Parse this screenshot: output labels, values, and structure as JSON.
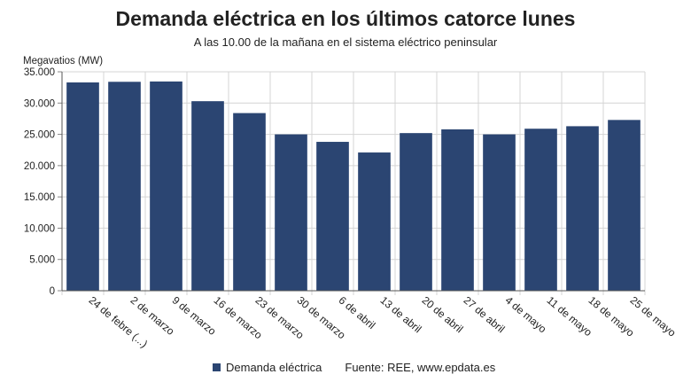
{
  "chart_data": {
    "type": "bar",
    "title": "Demanda eléctrica en los últimos catorce lunes",
    "subtitle": "A las 10.00 de la mañana en el sistema eléctrico peninsular",
    "ylabel": "Megavatios (MW)",
    "xlabel": "",
    "ylim": [
      0,
      35000
    ],
    "yticks": [
      "0",
      "5.000",
      "10.000",
      "15.000",
      "20.000",
      "25.000",
      "30.000",
      "35.000"
    ],
    "ytick_values": [
      0,
      5000,
      10000,
      15000,
      20000,
      25000,
      30000,
      35000
    ],
    "categories": [
      "24 de febre (...)",
      "2 de marzo",
      "9 de marzo",
      "16 de marzo",
      "23 de marzo",
      "30 de marzo",
      "6 de abril",
      "13 de abril",
      "20 de abril",
      "27 de abril",
      "4 de mayo",
      "11 de mayo",
      "18 de mayo",
      "25 de mayo"
    ],
    "series": [
      {
        "name": "Demanda eléctrica",
        "values": [
          33300,
          33400,
          33450,
          30300,
          28400,
          25000,
          23800,
          22100,
          25200,
          25800,
          25000,
          25900,
          26300,
          27300
        ]
      }
    ],
    "bar_color": "#2b4572",
    "grid": true,
    "legend_position": "bottom"
  },
  "footer": {
    "legend_label": "Demanda eléctrica",
    "source": "Fuente: REE, www.epdata.es"
  }
}
